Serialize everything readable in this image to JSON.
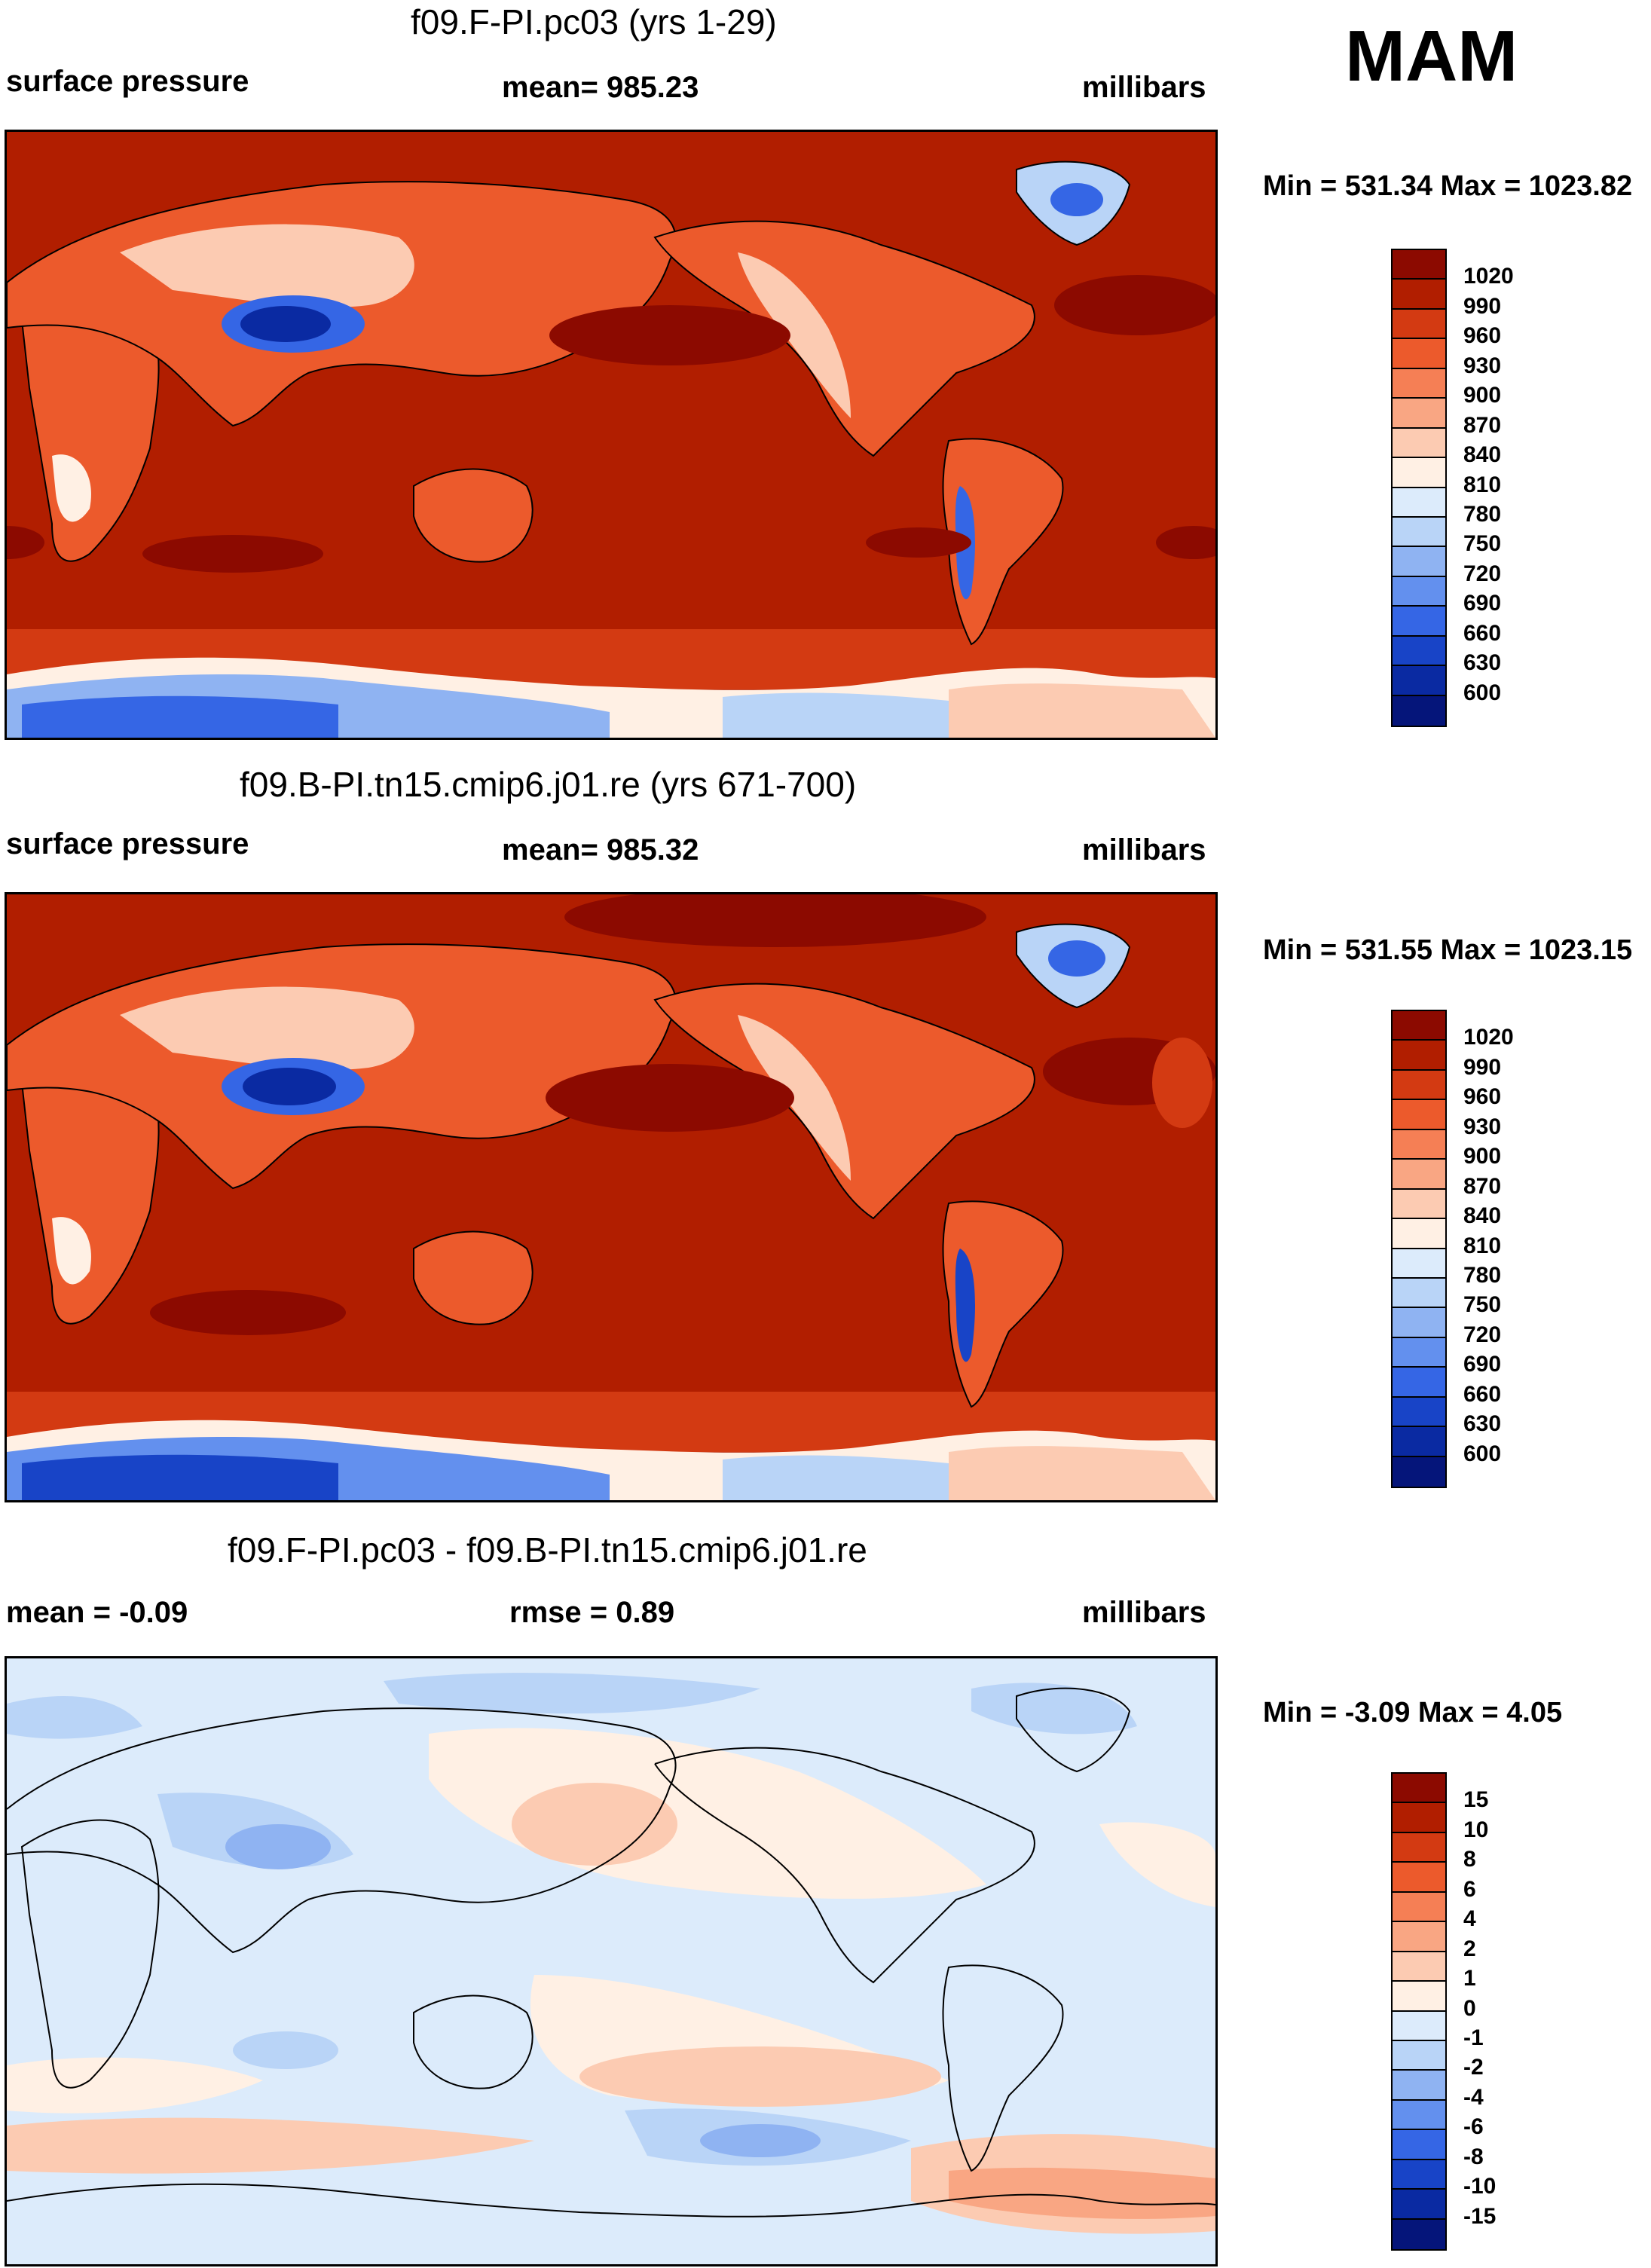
{
  "season": "MAM",
  "panels": [
    {
      "title": "f09.F-PI.pc03 (yrs 1-29)",
      "left_label": "surface pressure",
      "center_label": "mean= 985.23",
      "right_label": "millibars",
      "min_max": "Min = 531.34 Max = 1023.82"
    },
    {
      "title": "f09.B-PI.tn15.cmip6.j01.re (yrs 671-700)",
      "left_label": "surface pressure",
      "center_label": "mean= 985.32",
      "right_label": "millibars",
      "min_max": "Min = 531.55 Max = 1023.15"
    },
    {
      "title": "f09.F-PI.pc03 - f09.B-PI.tn15.cmip6.j01.re",
      "left_label": "mean =  -0.09",
      "center_label": "rmse =   0.89",
      "right_label": "millibars",
      "min_max": "Min =  -3.09 Max =   4.05"
    }
  ],
  "colorbars": {
    "absolute": {
      "labels": [
        "1020",
        "990",
        "960",
        "930",
        "900",
        "870",
        "840",
        "810",
        "780",
        "750",
        "720",
        "690",
        "660",
        "630",
        "600"
      ],
      "colors": [
        "#8c0a00",
        "#b11e00",
        "#d33a12",
        "#ec5a2c",
        "#f57f55",
        "#f9a683",
        "#fccbb2",
        "#fff0e4",
        "#dcebfb",
        "#b9d4f7",
        "#8fb3f2",
        "#6390ee",
        "#3566e5",
        "#1844c7",
        "#0a2aa2",
        "#05157a"
      ]
    },
    "difference": {
      "labels": [
        "15",
        "10",
        "8",
        "6",
        "4",
        "2",
        "1",
        "0",
        "-1",
        "-2",
        "-4",
        "-6",
        "-8",
        "-10",
        "-15"
      ],
      "colors": [
        "#8c0a00",
        "#b11e00",
        "#d33a12",
        "#ec5a2c",
        "#f57f55",
        "#f9a683",
        "#fccbb2",
        "#fff0e4",
        "#dcebfb",
        "#b9d4f7",
        "#8fb3f2",
        "#6390ee",
        "#3566e5",
        "#1844c7",
        "#0a2aa2",
        "#05157a"
      ]
    }
  }
}
